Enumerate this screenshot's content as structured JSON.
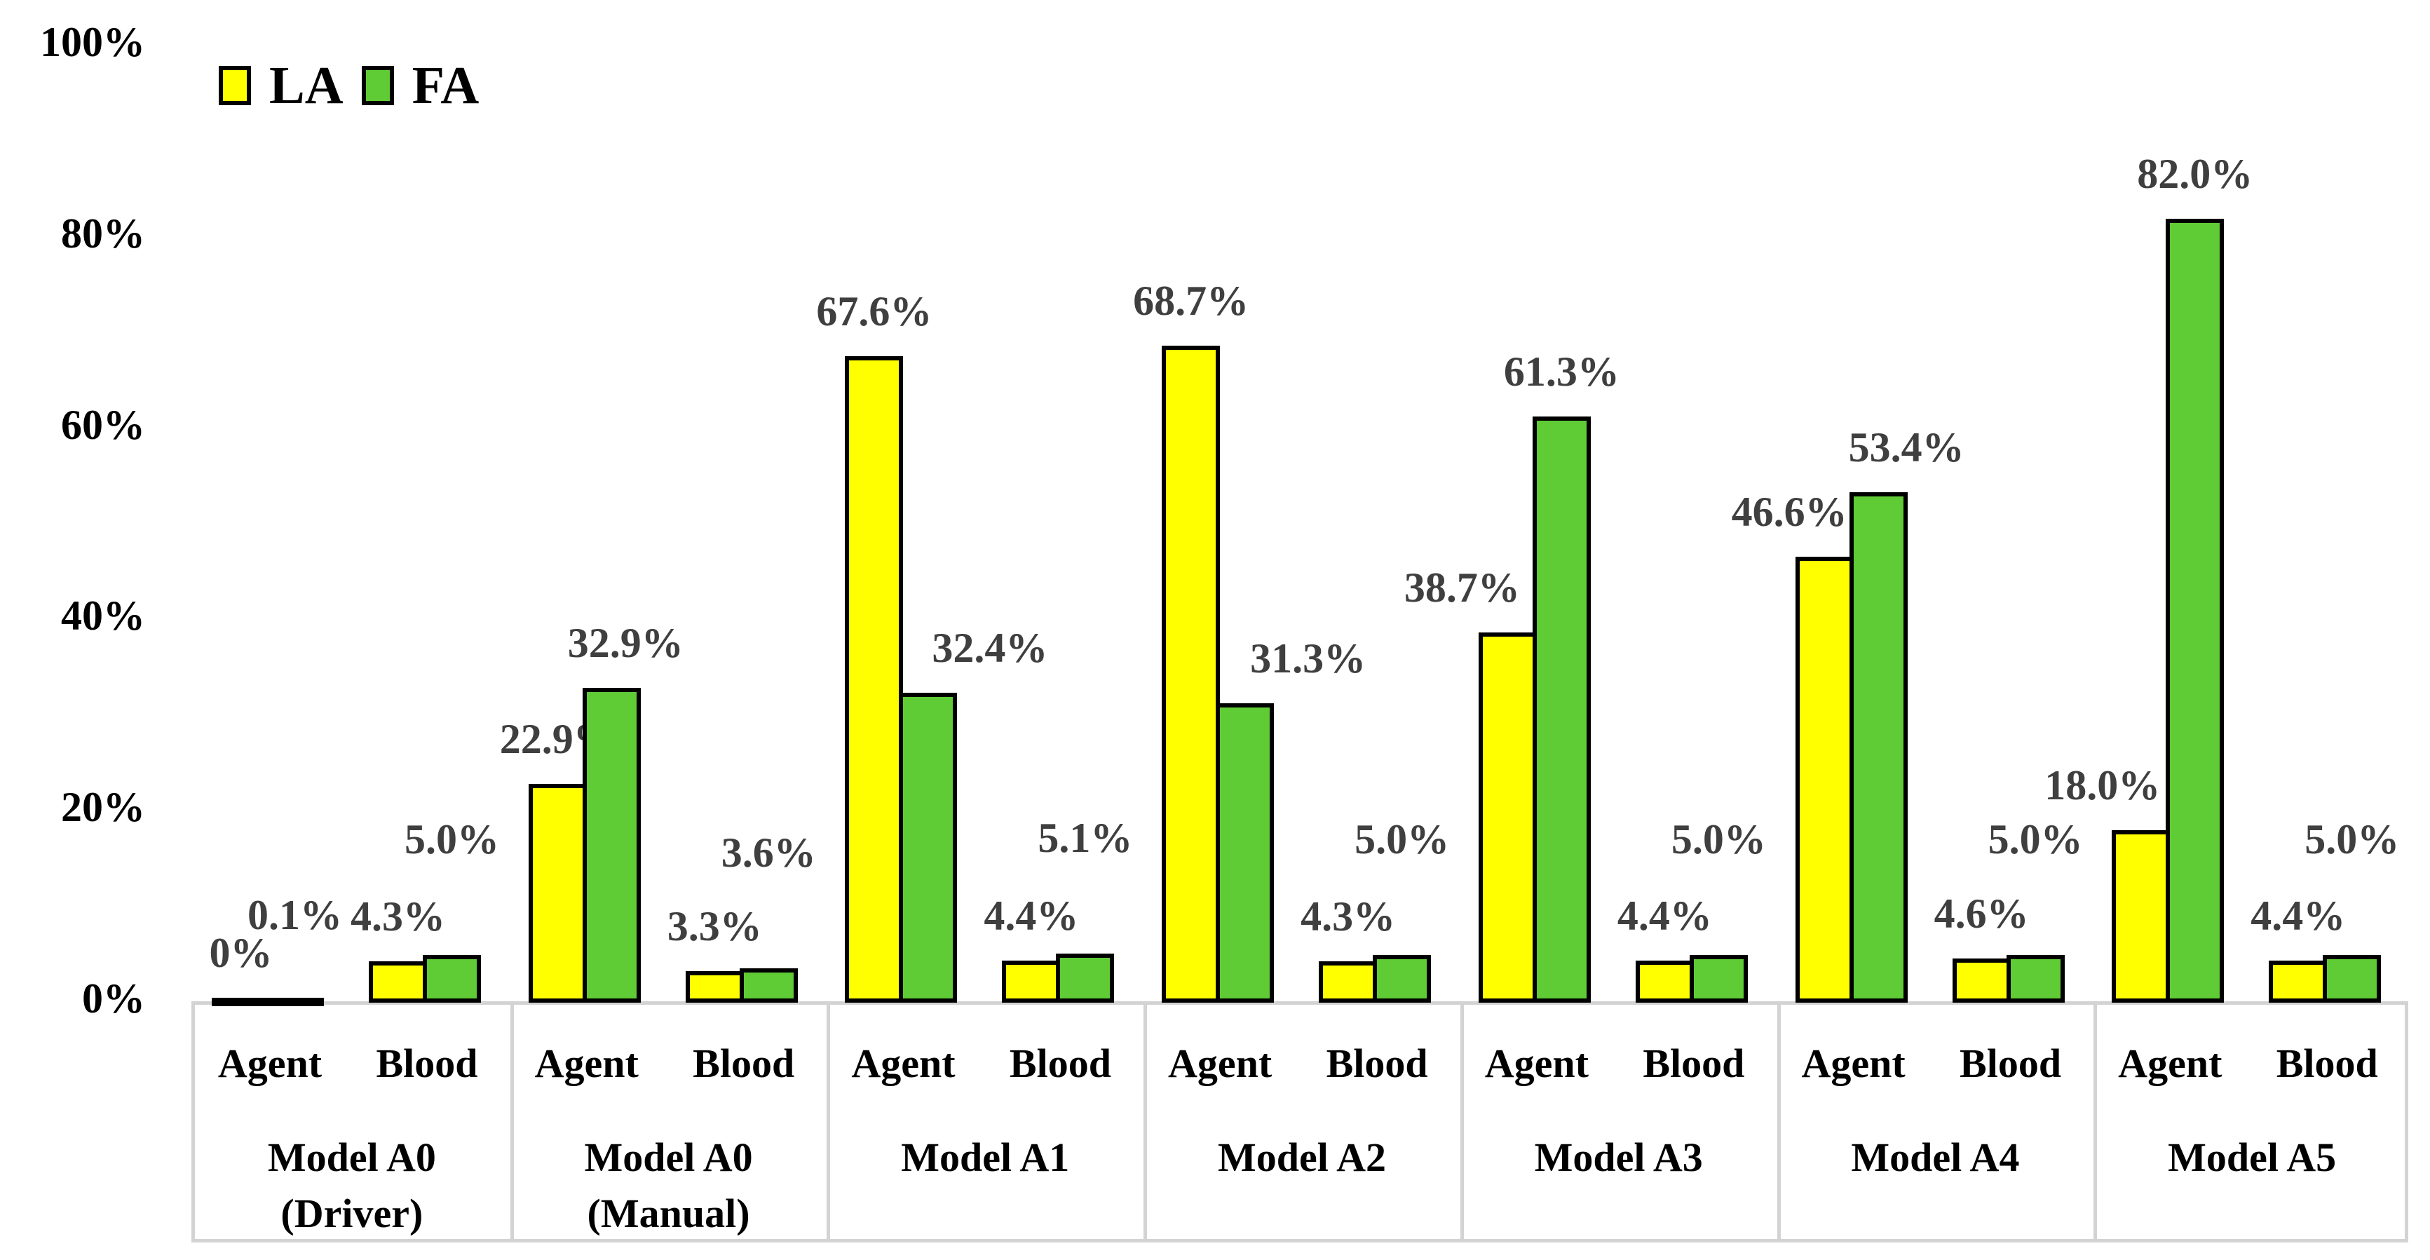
{
  "chart_data": {
    "type": "bar",
    "title": "",
    "xlabel": "",
    "ylabel": "",
    "ylim": [
      0,
      100
    ],
    "grid": false,
    "legend_position": "top-left",
    "y_axis": {
      "tick_values": [
        0,
        20,
        40,
        60,
        80,
        100
      ],
      "tick_labels": [
        "0%",
        "20%",
        "40%",
        "60%",
        "80%",
        "100%"
      ]
    },
    "legend": {
      "entries": [
        {
          "name": "LA",
          "color": "#FFFF00"
        },
        {
          "name": "FA",
          "color": "#5FCB35"
        }
      ]
    },
    "series_names": [
      "LA",
      "FA"
    ],
    "colors": {
      "LA": "#FFFF00",
      "FA": "#5FCB35",
      "bar_border": "#000000",
      "data_label": "#3F3F3F",
      "table_border": "#D3D3D3",
      "axis_text": "#000000"
    },
    "groups": [
      {
        "model": "Model A0 (Driver)",
        "model_lines": [
          "Model A0",
          "(Driver)"
        ],
        "categories": [
          {
            "name": "Agent",
            "LA": 0,
            "FA": 0.1,
            "labels": {
              "LA": "0%",
              "FA": "0.1%"
            }
          },
          {
            "name": "Blood",
            "LA": 4.3,
            "FA": 5.0,
            "labels": {
              "LA": "4.3%",
              "FA": "5.0%"
            }
          }
        ]
      },
      {
        "model": "Model A0 (Manual)",
        "model_lines": [
          "Model A0",
          "(Manual)"
        ],
        "categories": [
          {
            "name": "Agent",
            "LA": 22.9,
            "FA": 32.9,
            "labels": {
              "LA": "22.9%",
              "FA": "32.9%"
            }
          },
          {
            "name": "Blood",
            "LA": 3.3,
            "FA": 3.6,
            "labels": {
              "LA": "3.3%",
              "FA": "3.6%"
            }
          }
        ]
      },
      {
        "model": "Model A1",
        "model_lines": [
          "Model A1"
        ],
        "categories": [
          {
            "name": "Agent",
            "LA": 67.6,
            "FA": 32.4,
            "labels": {
              "LA": "67.6%",
              "FA": "32.4%"
            }
          },
          {
            "name": "Blood",
            "LA": 4.4,
            "FA": 5.1,
            "labels": {
              "LA": "4.4%",
              "FA": "5.1%"
            }
          }
        ]
      },
      {
        "model": "Model A2",
        "model_lines": [
          "Model A2"
        ],
        "categories": [
          {
            "name": "Agent",
            "LA": 68.7,
            "FA": 31.3,
            "labels": {
              "LA": "68.7%",
              "FA": "31.3%"
            }
          },
          {
            "name": "Blood",
            "LA": 4.3,
            "FA": 5.0,
            "labels": {
              "LA": "4.3%",
              "FA": "5.0%"
            }
          }
        ]
      },
      {
        "model": "Model A3",
        "model_lines": [
          "Model A3"
        ],
        "categories": [
          {
            "name": "Agent",
            "LA": 38.7,
            "FA": 61.3,
            "labels": {
              "LA": "38.7%",
              "FA": "61.3%"
            }
          },
          {
            "name": "Blood",
            "LA": 4.4,
            "FA": 5.0,
            "labels": {
              "LA": "4.4%",
              "FA": "5.0%"
            }
          }
        ]
      },
      {
        "model": "Model A4",
        "model_lines": [
          "Model A4"
        ],
        "categories": [
          {
            "name": "Agent",
            "LA": 46.6,
            "FA": 53.4,
            "labels": {
              "LA": "46.6%",
              "FA": "53.4%"
            }
          },
          {
            "name": "Blood",
            "LA": 4.6,
            "FA": 5.0,
            "labels": {
              "LA": "4.6%",
              "FA": "5.0%"
            }
          }
        ]
      },
      {
        "model": "Model A5",
        "model_lines": [
          "Model A5"
        ],
        "categories": [
          {
            "name": "Agent",
            "LA": 18.0,
            "FA": 82.0,
            "labels": {
              "LA": "18.0%",
              "FA": "82.0%"
            }
          },
          {
            "name": "Blood",
            "LA": 4.4,
            "FA": 5.0,
            "labels": {
              "LA": "4.4%",
              "FA": "5.0%"
            }
          }
        ]
      }
    ]
  }
}
